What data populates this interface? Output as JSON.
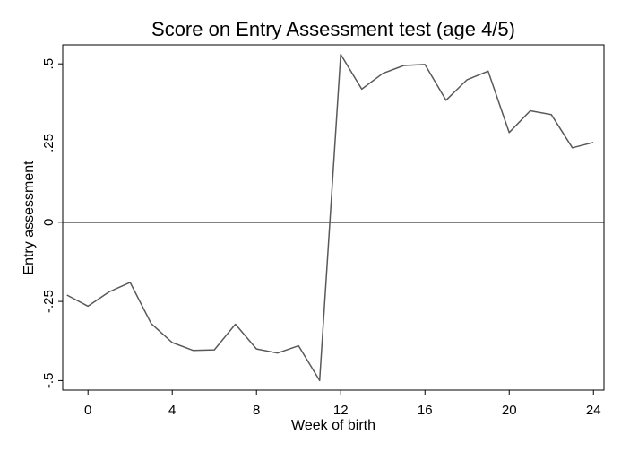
{
  "chart_data": {
    "type": "line",
    "title": "Score on Entry Assessment test (age 4/5)",
    "xlabel": "Week of birth",
    "ylabel": "Entry assessment",
    "xlim": [
      -1.2,
      24.5
    ],
    "ylim": [
      -0.53,
      0.56
    ],
    "x_ticks": [
      0,
      4,
      8,
      12,
      16,
      20,
      24
    ],
    "x_tick_labels": [
      "0",
      "4",
      "8",
      "12",
      "16",
      "20",
      "24"
    ],
    "y_ticks": [
      0.5,
      0.25,
      0,
      -0.25,
      -0.5
    ],
    "y_tick_labels": [
      ".5",
      ".25",
      "0",
      "-.25",
      "-.5"
    ],
    "reference_line_y": 0,
    "grid": false,
    "line_color": "#595959",
    "series": [
      {
        "x": [
          -1,
          0,
          1,
          2,
          3,
          4,
          5,
          6,
          7,
          8,
          9,
          10,
          11,
          12,
          13,
          14,
          15,
          16,
          17,
          18,
          19,
          20,
          21,
          22,
          23,
          24
        ],
        "values": [
          -0.23,
          -0.265,
          -0.22,
          -0.19,
          -0.32,
          -0.38,
          -0.405,
          -0.403,
          -0.322,
          -0.4,
          -0.413,
          -0.39,
          -0.5,
          0.53,
          0.42,
          0.47,
          0.495,
          0.498,
          0.385,
          0.45,
          0.477,
          0.283,
          0.352,
          0.34,
          0.235,
          0.252
        ]
      }
    ]
  }
}
